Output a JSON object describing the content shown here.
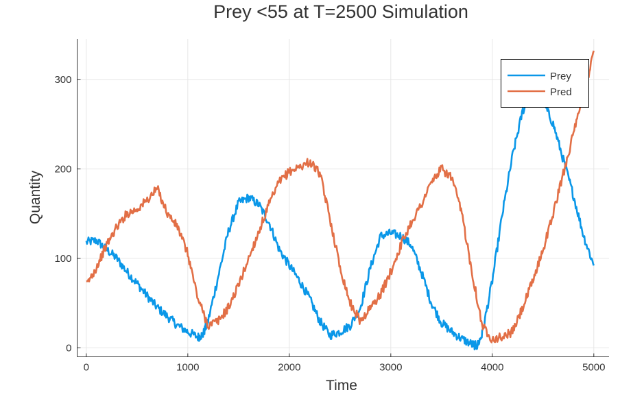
{
  "chart_data": {
    "type": "line",
    "title": "Prey <55 at T=2500 Simulation",
    "xlabel": "Time",
    "ylabel": "Quantity",
    "xlim": [
      -90,
      5150
    ],
    "ylim": [
      -10,
      345
    ],
    "xticks": [
      0,
      1000,
      2000,
      3000,
      4000,
      5000
    ],
    "yticks": [
      0,
      100,
      200,
      300
    ],
    "grid": true,
    "legend_position": "top-right",
    "series": [
      {
        "name": "Prey",
        "color": "#0a97e8",
        "x": [
          0,
          100,
          200,
          300,
          400,
          500,
          600,
          700,
          800,
          900,
          1000,
          1100,
          1150,
          1200,
          1300,
          1400,
          1500,
          1600,
          1700,
          1800,
          1900,
          2000,
          2100,
          2200,
          2300,
          2400,
          2500,
          2600,
          2700,
          2800,
          2900,
          3000,
          3100,
          3200,
          3300,
          3400,
          3500,
          3600,
          3700,
          3800,
          3850,
          3900,
          4000,
          4100,
          4200,
          4300,
          4400,
          4500,
          4600,
          4700,
          4800,
          4900,
          5000
        ],
        "y": [
          118,
          120,
          110,
          100,
          85,
          72,
          58,
          45,
          35,
          25,
          18,
          12,
          15,
          30,
          80,
          130,
          162,
          168,
          160,
          140,
          110,
          92,
          75,
          55,
          30,
          14,
          18,
          25,
          45,
          90,
          125,
          128,
          125,
          115,
          85,
          50,
          28,
          18,
          10,
          4,
          2,
          15,
          75,
          150,
          215,
          265,
          285,
          275,
          250,
          210,
          170,
          125,
          92
        ]
      },
      {
        "name": "Pred",
        "color": "#e26f46",
        "x": [
          0,
          100,
          200,
          300,
          400,
          500,
          600,
          700,
          800,
          900,
          1000,
          1100,
          1200,
          1300,
          1400,
          1500,
          1600,
          1700,
          1800,
          1900,
          2000,
          2100,
          2200,
          2300,
          2400,
          2500,
          2600,
          2700,
          2800,
          2900,
          3000,
          3100,
          3200,
          3300,
          3400,
          3500,
          3600,
          3700,
          3800,
          3900,
          4000,
          4100,
          4200,
          4300,
          4400,
          4500,
          4600,
          4700,
          4800,
          4900,
          5000
        ],
        "y": [
          70,
          90,
          115,
          135,
          150,
          155,
          165,
          178,
          150,
          135,
          105,
          55,
          25,
          30,
          45,
          70,
          100,
          130,
          160,
          185,
          197,
          202,
          208,
          195,
          145,
          90,
          50,
          30,
          45,
          60,
          85,
          115,
          140,
          160,
          185,
          200,
          190,
          150,
          85,
          25,
          10,
          12,
          18,
          45,
          75,
          110,
          150,
          195,
          240,
          280,
          332
        ]
      }
    ]
  }
}
